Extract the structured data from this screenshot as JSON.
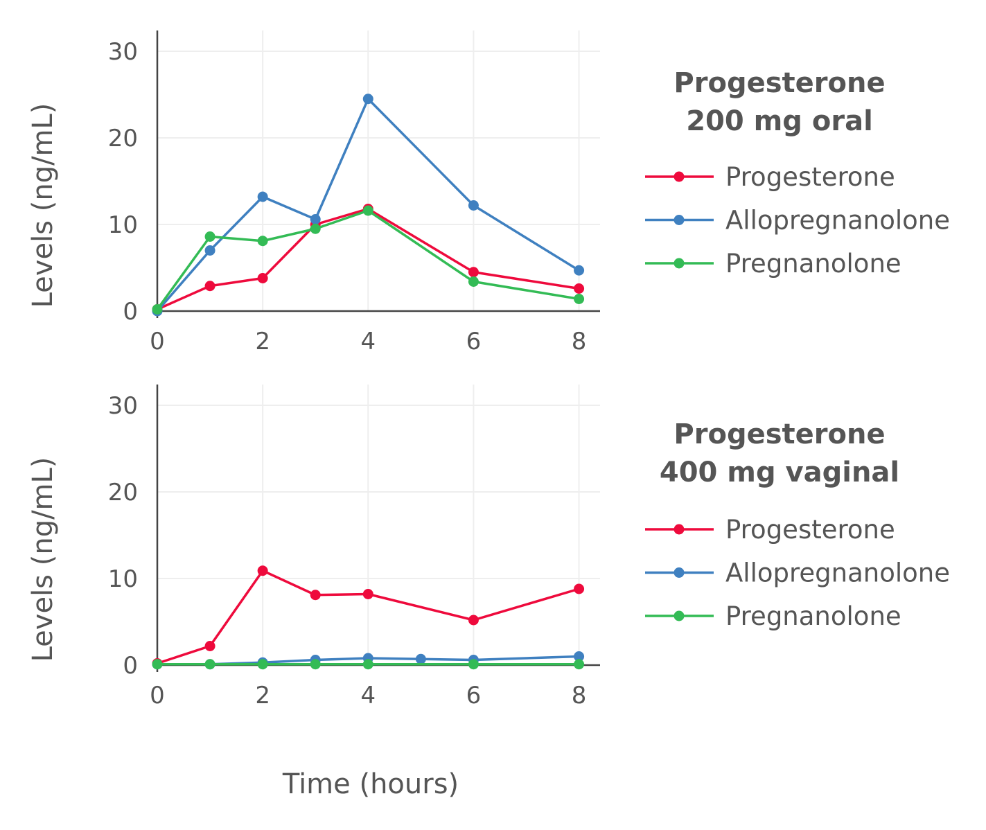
{
  "chart_data": [
    {
      "type": "line",
      "title": [
        "Progesterone",
        "200 mg oral"
      ],
      "xlabel": "Time (hours)",
      "ylabel": "Levels (ng/mL)",
      "xlim": [
        0,
        8.4
      ],
      "ylim": [
        0,
        32.4
      ],
      "xticks": [
        0,
        2,
        4,
        6,
        8
      ],
      "yticks": [
        0,
        10,
        20,
        30
      ],
      "grid": true,
      "legend": "right",
      "series": [
        {
          "name": "Progesterone",
          "color": "#ee0a3c",
          "x": [
            0,
            1,
            2,
            3,
            4,
            6,
            8
          ],
          "y": [
            0.2,
            2.9,
            3.8,
            10.0,
            11.8,
            4.5,
            2.6
          ]
        },
        {
          "name": "Allopregnanolone",
          "color": "#3f80c0",
          "x": [
            0,
            1,
            2,
            3,
            4,
            6,
            8
          ],
          "y": [
            0.0,
            7.0,
            13.2,
            10.6,
            24.5,
            12.2,
            4.7
          ]
        },
        {
          "name": "Pregnanolone",
          "color": "#33bb55",
          "x": [
            0,
            1,
            2,
            3,
            4,
            6,
            8
          ],
          "y": [
            0.2,
            8.6,
            8.1,
            9.5,
            11.6,
            3.4,
            1.4
          ]
        }
      ]
    },
    {
      "type": "line",
      "title": [
        "Progesterone",
        "400 mg vaginal"
      ],
      "xlabel": "Time (hours)",
      "ylabel": "Levels (ng/mL)",
      "xlim": [
        0,
        8.4
      ],
      "ylim": [
        0,
        32.4
      ],
      "xticks": [
        0,
        2,
        4,
        6,
        8
      ],
      "yticks": [
        0,
        10,
        20,
        30
      ],
      "grid": true,
      "legend": "right",
      "series": [
        {
          "name": "Progesterone",
          "color": "#ee0a3c",
          "x": [
            0,
            1,
            2,
            3,
            4,
            6,
            8
          ],
          "y": [
            0.2,
            2.2,
            10.9,
            8.1,
            8.2,
            5.2,
            8.8
          ]
        },
        {
          "name": "Allopregnanolone",
          "color": "#3f80c0",
          "x": [
            0,
            1,
            2,
            3,
            4,
            5,
            6,
            8
          ],
          "y": [
            0.1,
            0.1,
            0.3,
            0.6,
            0.8,
            0.7,
            0.6,
            1.0
          ]
        },
        {
          "name": "Pregnanolone",
          "color": "#33bb55",
          "x": [
            0,
            1,
            2,
            3,
            4,
            6,
            8
          ],
          "y": [
            0.1,
            0.1,
            0.1,
            0.1,
            0.1,
            0.1,
            0.1
          ]
        }
      ]
    }
  ],
  "shared_xlabel": "Time (hours)"
}
